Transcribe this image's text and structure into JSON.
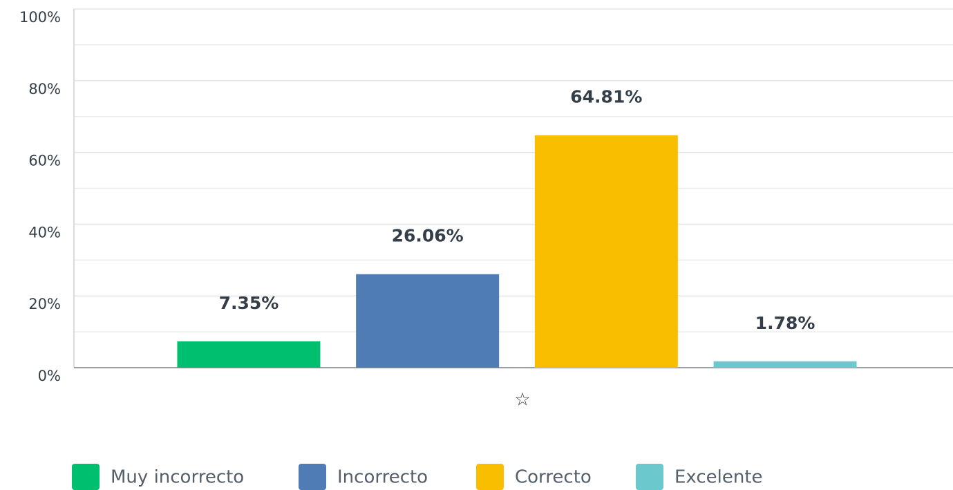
{
  "chart_data": {
    "type": "bar",
    "categories": [
      "☆"
    ],
    "series": [
      {
        "name": "Muy incorrecto",
        "color": "#00bf6f",
        "values": [
          7.35
        ],
        "value_labels": [
          "7.35%"
        ]
      },
      {
        "name": "Incorrecto",
        "color": "#507cb6",
        "values": [
          26.06
        ],
        "value_labels": [
          "26.06%"
        ]
      },
      {
        "name": "Correcto",
        "color": "#f9be00",
        "values": [
          64.81
        ],
        "value_labels": [
          "64.81%"
        ]
      },
      {
        "name": "Excelente",
        "color": "#6bc8cd",
        "values": [
          1.78
        ],
        "value_labels": [
          "1.78%"
        ]
      }
    ],
    "ylim": [
      0,
      100
    ],
    "yticks": [
      {
        "value": 0,
        "label": "0%"
      },
      {
        "value": 20,
        "label": "20%"
      },
      {
        "value": 40,
        "label": "40%"
      },
      {
        "value": 60,
        "label": "60%"
      },
      {
        "value": 80,
        "label": "80%"
      },
      {
        "value": 100,
        "label": "100%"
      }
    ],
    "minor_yticks": [
      10,
      30,
      50,
      70,
      90
    ],
    "grid": true,
    "legend": "bottom"
  }
}
